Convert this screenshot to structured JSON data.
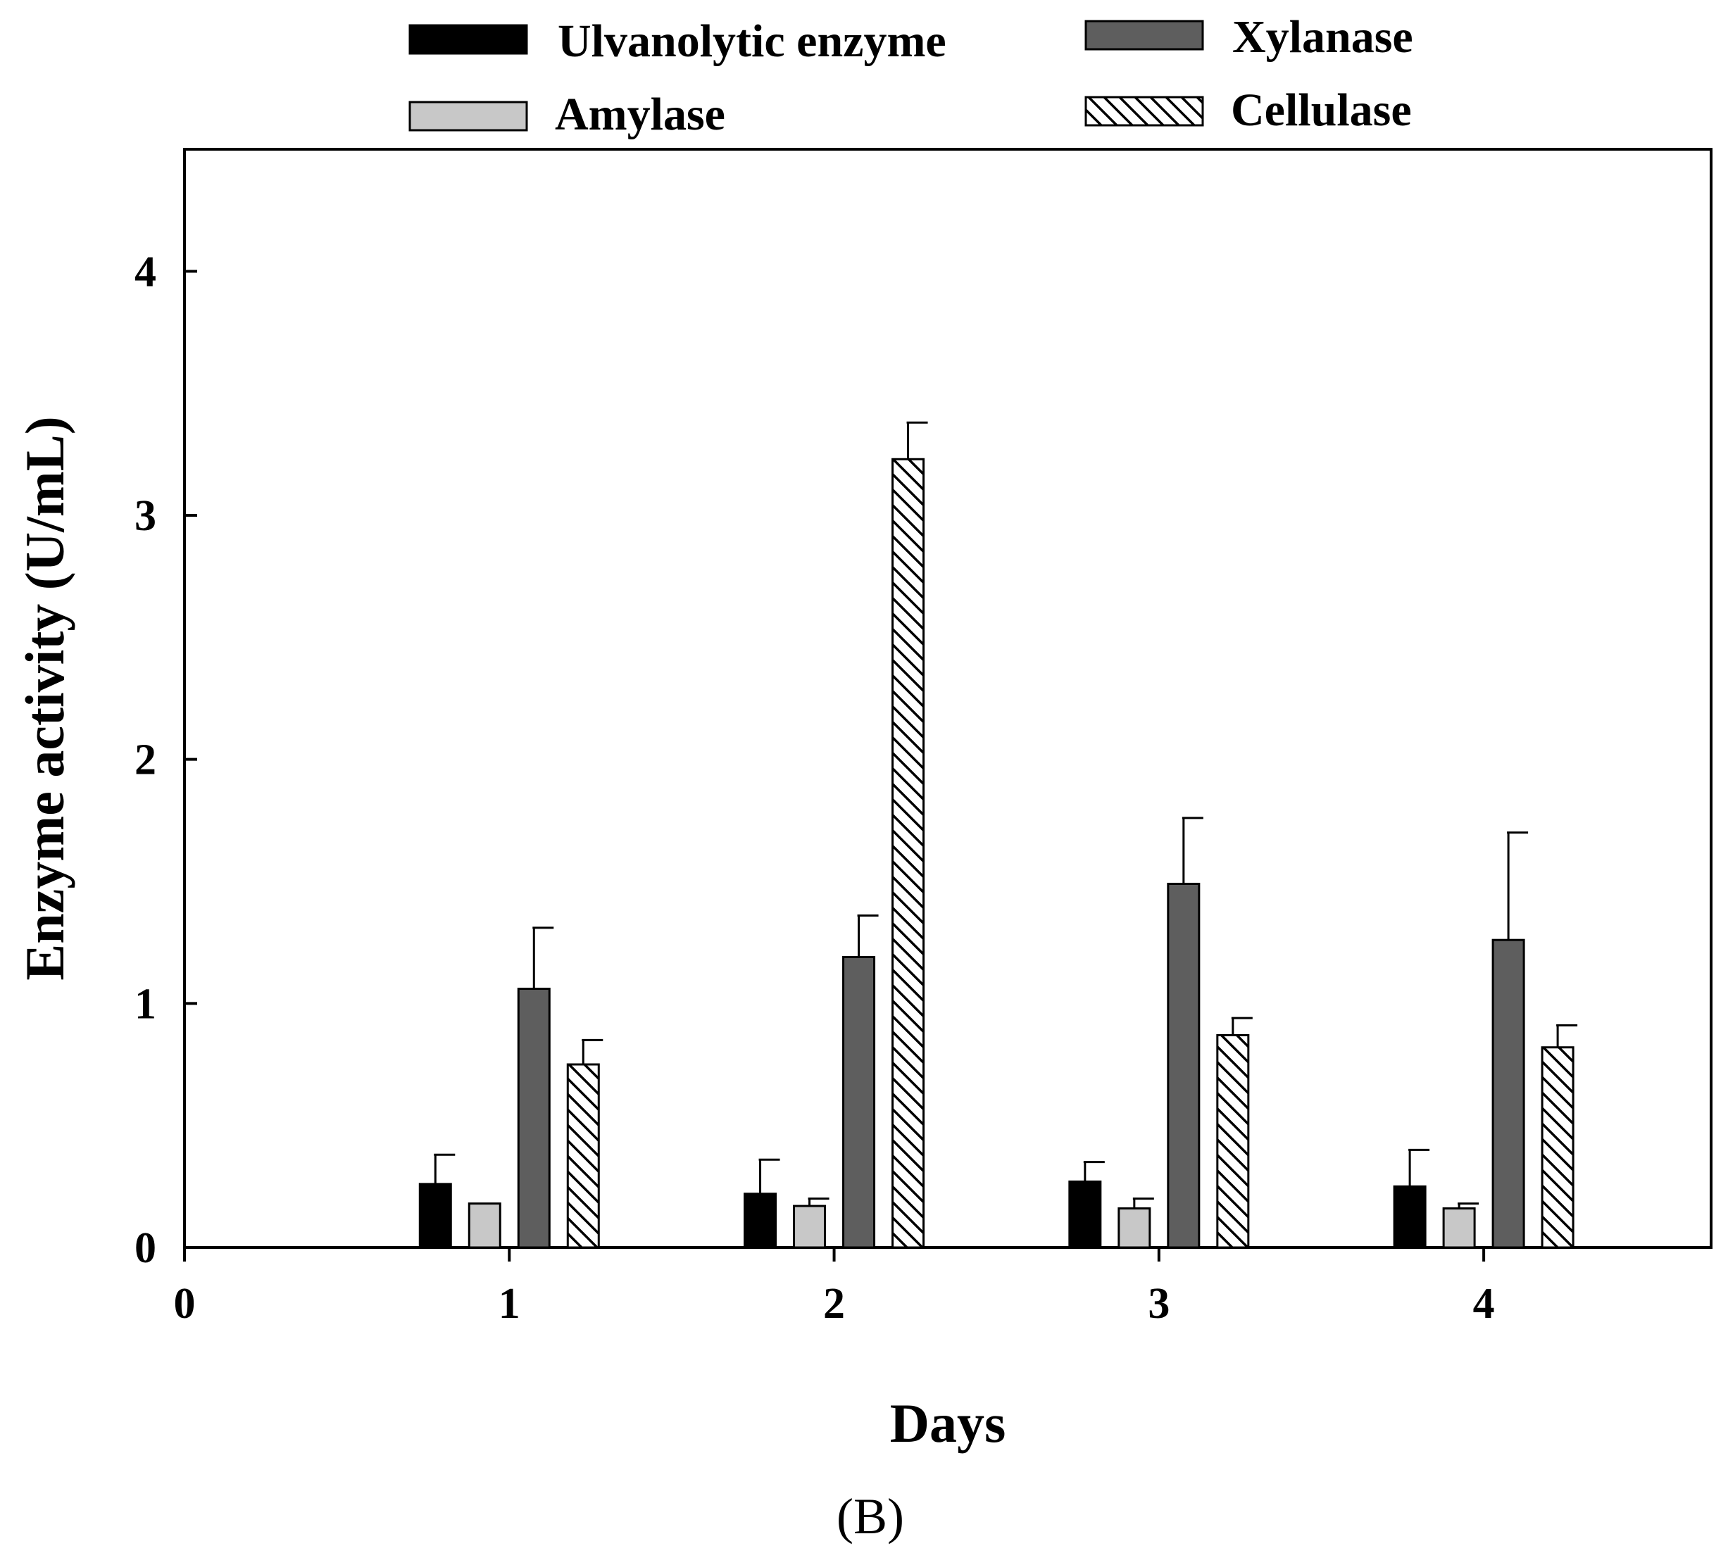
{
  "chart_data": {
    "type": "bar",
    "xlabel": "Days",
    "ylabel": "Enzyme activity (U/mL)",
    "panel_label": "(B)",
    "x_ticks": [
      "0",
      "1",
      "2",
      "3",
      "4"
    ],
    "y_ticks": [
      "0",
      "1",
      "2",
      "3",
      "4"
    ],
    "xlim": [
      0,
      4.7
    ],
    "ylim": [
      0,
      4.5
    ],
    "categories": [
      "1",
      "2",
      "3",
      "4"
    ],
    "legend_position": "top, outside plot, two columns",
    "series": [
      {
        "name": "Ulvanolytic enzyme",
        "fill": "#000000",
        "pattern": "solid",
        "values": [
          0.26,
          0.22,
          0.27,
          0.25
        ],
        "errors": [
          0.12,
          0.14,
          0.08,
          0.15
        ]
      },
      {
        "name": "Amylase",
        "fill": "#c8c8c8",
        "pattern": "solid",
        "values": [
          0.18,
          0.17,
          0.16,
          0.16
        ],
        "errors": [
          0.0,
          0.03,
          0.04,
          0.02
        ]
      },
      {
        "name": "Xylanase",
        "fill": "#5e5e5e",
        "pattern": "solid",
        "values": [
          1.06,
          1.19,
          1.49,
          1.26
        ],
        "errors": [
          0.25,
          0.17,
          0.27,
          0.44
        ]
      },
      {
        "name": "Cellulase",
        "fill": "#ffffff",
        "pattern": "hatch",
        "values": [
          0.75,
          3.23,
          0.87,
          0.82
        ],
        "errors": [
          0.1,
          0.15,
          0.07,
          0.09
        ]
      }
    ]
  }
}
